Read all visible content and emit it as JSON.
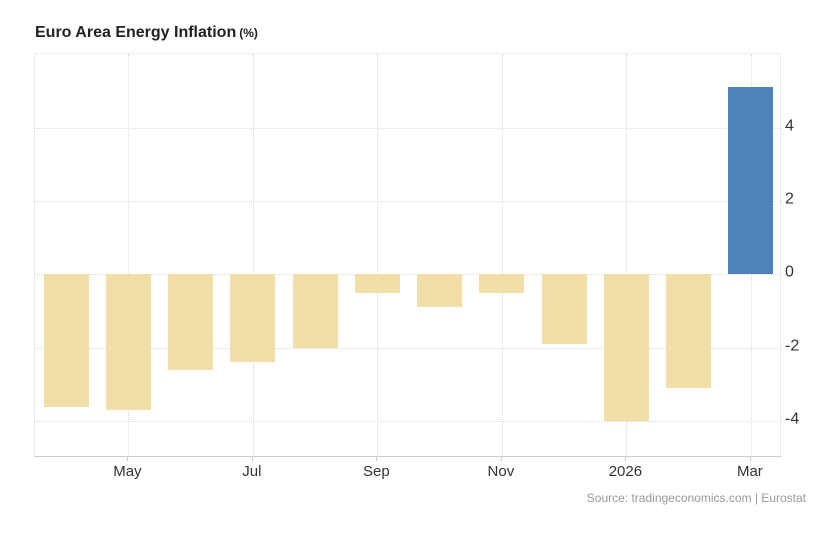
{
  "header": {
    "title": "Euro Area Energy Inflation",
    "unit_suffix": "(%)"
  },
  "footer": {
    "source_text": "Source: tradingeconomics.com | Eurostat"
  },
  "chart_data": {
    "type": "bar",
    "title": "Euro Area Energy Inflation (%)",
    "values": [
      -3.6,
      -3.7,
      -2.6,
      -2.4,
      -2.0,
      -0.5,
      -0.9,
      -0.5,
      -1.9,
      -4.0,
      -3.1,
      5.1
    ],
    "bar_color_keys": [
      "beige",
      "beige",
      "beige",
      "beige",
      "beige",
      "beige",
      "beige",
      "beige",
      "beige",
      "beige",
      "beige",
      "blue"
    ],
    "palette": {
      "beige": "#f2dfa7",
      "blue": "#4e82bb"
    },
    "x_tick_labels": [
      "May",
      "Jul",
      "Sep",
      "Nov",
      "2026",
      "Mar"
    ],
    "x_tick_bar_indices": [
      1,
      3,
      5,
      7,
      9,
      11
    ],
    "y_tick_values": [
      4,
      2,
      0,
      -2,
      -4
    ],
    "ylim": [
      -5,
      6
    ],
    "grid": "dotted",
    "legend": "none",
    "y_axis_side": "right",
    "xlabel": "",
    "ylabel": ""
  }
}
